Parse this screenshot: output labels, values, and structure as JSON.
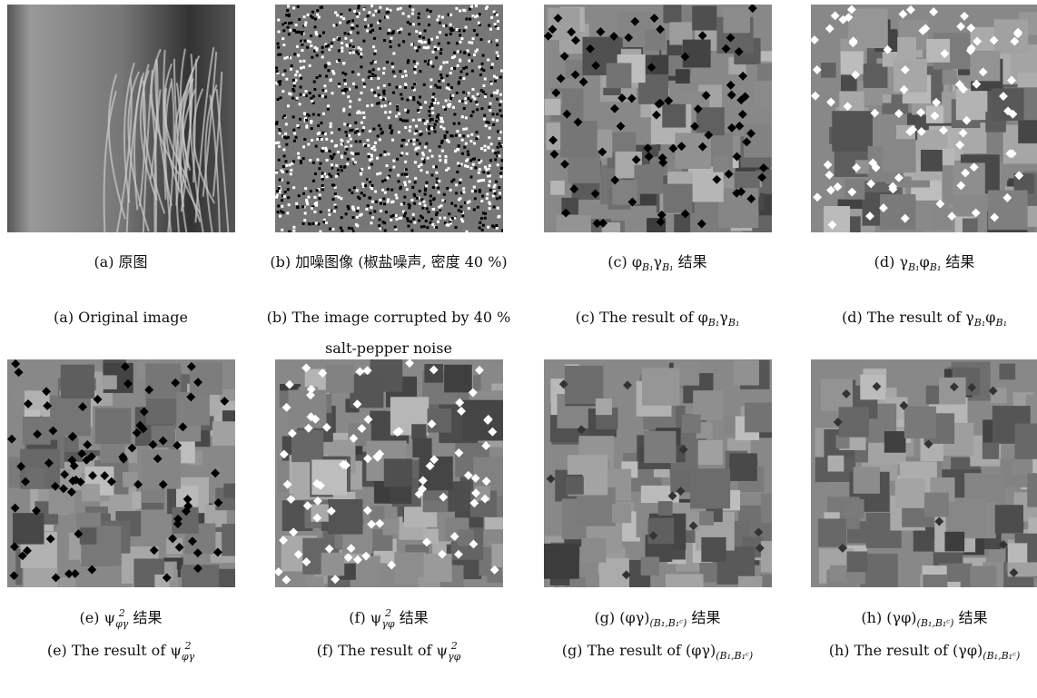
{
  "panels": [
    {
      "cn": [
        "(a) 原图"
      ],
      "en": [
        "(a) Original image"
      ]
    },
    {
      "cn": [
        "(b) 加噪图像 (椒盐噪声, 密度 40 %)"
      ],
      "en": [
        "(b) The image corrupted by 40 % salt-pepper noise"
      ]
    },
    {
      "cn": [
        "(c) φ",
        {
          "sub": "B₁"
        },
        "γ",
        {
          "sub": "B₁"
        },
        " 结果"
      ],
      "en": [
        "(c) The result of φ",
        {
          "sub": "B₁"
        },
        "γ",
        {
          "sub": "B₁"
        }
      ]
    },
    {
      "cn": [
        "(d) γ",
        {
          "sub": "B₁"
        },
        "φ",
        {
          "sub": "B₁"
        },
        " 结果"
      ],
      "en": [
        "(d) The result of γ",
        {
          "sub": "B₁"
        },
        "φ",
        {
          "sub": "B₁"
        }
      ]
    },
    {
      "cn": [
        "(e) ψ",
        {
          "sup": "2",
          "sub": "φγ"
        },
        " 结果"
      ],
      "en": [
        "(e) The result of ψ",
        {
          "sup": "2",
          "sub": "φγ"
        }
      ]
    },
    {
      "cn": [
        "(f) ψ",
        {
          "sup": "2",
          "sub": "γφ"
        },
        " 结果"
      ],
      "en": [
        "(f) The result of ψ",
        {
          "sup": "2",
          "sub": "γφ"
        }
      ]
    },
    {
      "cn": [
        "(g) (φγ)",
        {
          "sub": "(B₁,B₁ᶜ)"
        },
        " 结果"
      ],
      "en": [
        "(g) The result of (φγ)",
        {
          "sub": "(B₁,B₁ᶜ)"
        }
      ]
    },
    {
      "cn": [
        "(h) (γφ)",
        {
          "sub": "(B₁,B₁ᶜ)"
        },
        " 结果"
      ],
      "en": [
        "(h) The result of (γφ)",
        {
          "sub": "(B₁,B₁ᶜ)"
        }
      ]
    }
  ]
}
